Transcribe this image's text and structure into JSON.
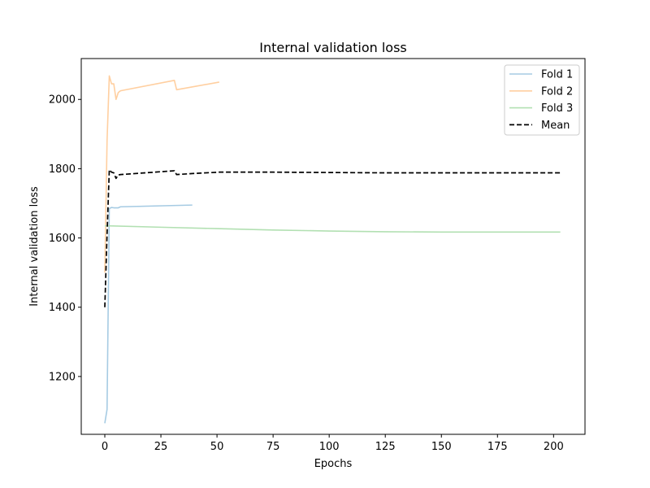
{
  "chart_data": {
    "type": "line",
    "title": "Internal validation loss",
    "xlabel": "Epochs",
    "ylabel": "Internal validation loss",
    "xlim": [
      -10.5,
      214
    ],
    "ylim": [
      1033,
      2118
    ],
    "xticks": [
      0,
      25,
      50,
      75,
      100,
      125,
      150,
      175,
      200
    ],
    "yticks": [
      1200,
      1400,
      1600,
      1800,
      2000
    ],
    "grid": false,
    "legend_position": "top-right",
    "series": [
      {
        "name": "Fold 1",
        "color": "#a6cbe3",
        "style": "solid",
        "x": [
          0,
          1,
          2,
          3,
          4,
          5,
          6,
          7,
          39
        ],
        "y": [
          1065,
          1105,
          1685,
          1688,
          1687,
          1687,
          1687,
          1690,
          1695
        ]
      },
      {
        "name": "Fold 2",
        "color": "#ffcfa0",
        "style": "solid",
        "x": [
          0,
          1,
          2,
          3,
          4,
          5,
          6,
          7,
          31,
          32,
          51
        ],
        "y": [
          1500,
          1880,
          2068,
          2045,
          2045,
          2000,
          2020,
          2025,
          2055,
          2028,
          2050
        ]
      },
      {
        "name": "Fold 3",
        "color": "#b2e0b2",
        "style": "solid",
        "x": [
          0,
          1,
          2,
          25,
          50,
          75,
          100,
          125,
          150,
          175,
          203
        ],
        "y": [
          1635,
          1635,
          1635,
          1631,
          1627,
          1623,
          1620,
          1618,
          1617,
          1617,
          1617
        ]
      },
      {
        "name": "Mean",
        "color": "#000000",
        "style": "dashed",
        "x": [
          0,
          1,
          2,
          3,
          4,
          5,
          6,
          7,
          31,
          32,
          39,
          51,
          75,
          100,
          125,
          150,
          175,
          203
        ],
        "y": [
          1400,
          1610,
          1797,
          1790,
          1788,
          1772,
          1782,
          1783,
          1794,
          1783,
          1786,
          1790,
          1790,
          1789,
          1788,
          1788,
          1788,
          1788
        ]
      }
    ]
  }
}
